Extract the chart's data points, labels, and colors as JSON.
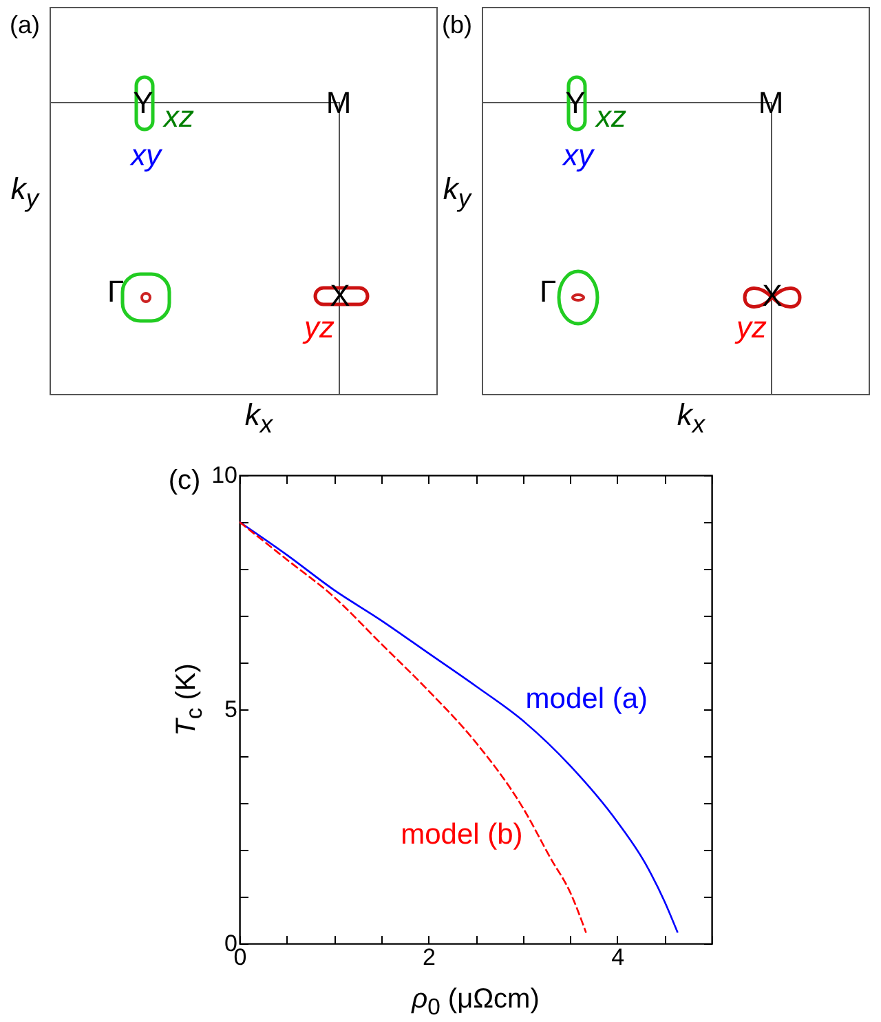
{
  "chart_data": [
    {
      "type": "other",
      "title": "(a)",
      "xlabel": "k$_{x}$",
      "ylabel": "k$_{y}$",
      "annotations": [
        "Y",
        "M",
        "Γ",
        "X",
        "xz",
        "xy",
        "yz"
      ]
    },
    {
      "type": "other",
      "title": "(b)",
      "xlabel": "k$_{x}$",
      "ylabel": "k$_{y}$",
      "annotations": [
        "Y",
        "M",
        "Γ",
        "X",
        "xz",
        "xy",
        "yz"
      ]
    },
    {
      "type": "line",
      "title": "(c)",
      "xlabel": "ρ$_{0}$ (μΩcm)",
      "ylabel": "T$_{c}$ (K)",
      "xlim": [
        0,
        5
      ],
      "ylim": [
        0,
        10
      ],
      "xticks": [
        0,
        {
          "value": 0.5,
          "label": null
        },
        {
          "value": 1,
          "label": null
        },
        {
          "value": 1.5,
          "label": null
        },
        2,
        {
          "value": 2.5,
          "label": null
        },
        {
          "value": 3,
          "label": null
        },
        {
          "value": 3.5,
          "label": null
        },
        4,
        {
          "value": 4.5,
          "label": null
        },
        {
          "value": 5,
          "label": null
        }
      ],
      "yticks": [
        0,
        {
          "value": 1,
          "label": null
        },
        {
          "value": 2,
          "label": null
        },
        {
          "value": 3,
          "label": null
        },
        {
          "value": 4,
          "label": null
        },
        5,
        {
          "value": 6,
          "label": null
        },
        {
          "value": 7,
          "label": null
        },
        {
          "value": 8,
          "label": null
        },
        {
          "value": 9,
          "label": null
        },
        10
      ],
      "grid": false,
      "legend": false,
      "marker": "none",
      "series": [
        {
          "name": "model (a)",
          "color": "#0000ff",
          "line_style": "solid",
          "x": [
            0,
            0.5,
            1,
            1.5,
            2,
            2.5,
            3,
            3.5,
            4,
            4.3,
            4.5,
            4.64
          ],
          "values": [
            9.0,
            8.3,
            7.55,
            6.9,
            6.2,
            5.5,
            4.76,
            3.8,
            2.6,
            1.7,
            0.9,
            0.23
          ]
        },
        {
          "name": "model (b)",
          "color": "#ff0000",
          "line_style": "dashed",
          "x": [
            0,
            0.5,
            1,
            1.5,
            2,
            2.5,
            3,
            3.3,
            3.5,
            3.67
          ],
          "values": [
            9.0,
            8.2,
            7.4,
            6.4,
            5.4,
            4.3,
            2.9,
            1.8,
            1.1,
            0.23
          ]
        }
      ]
    }
  ]
}
